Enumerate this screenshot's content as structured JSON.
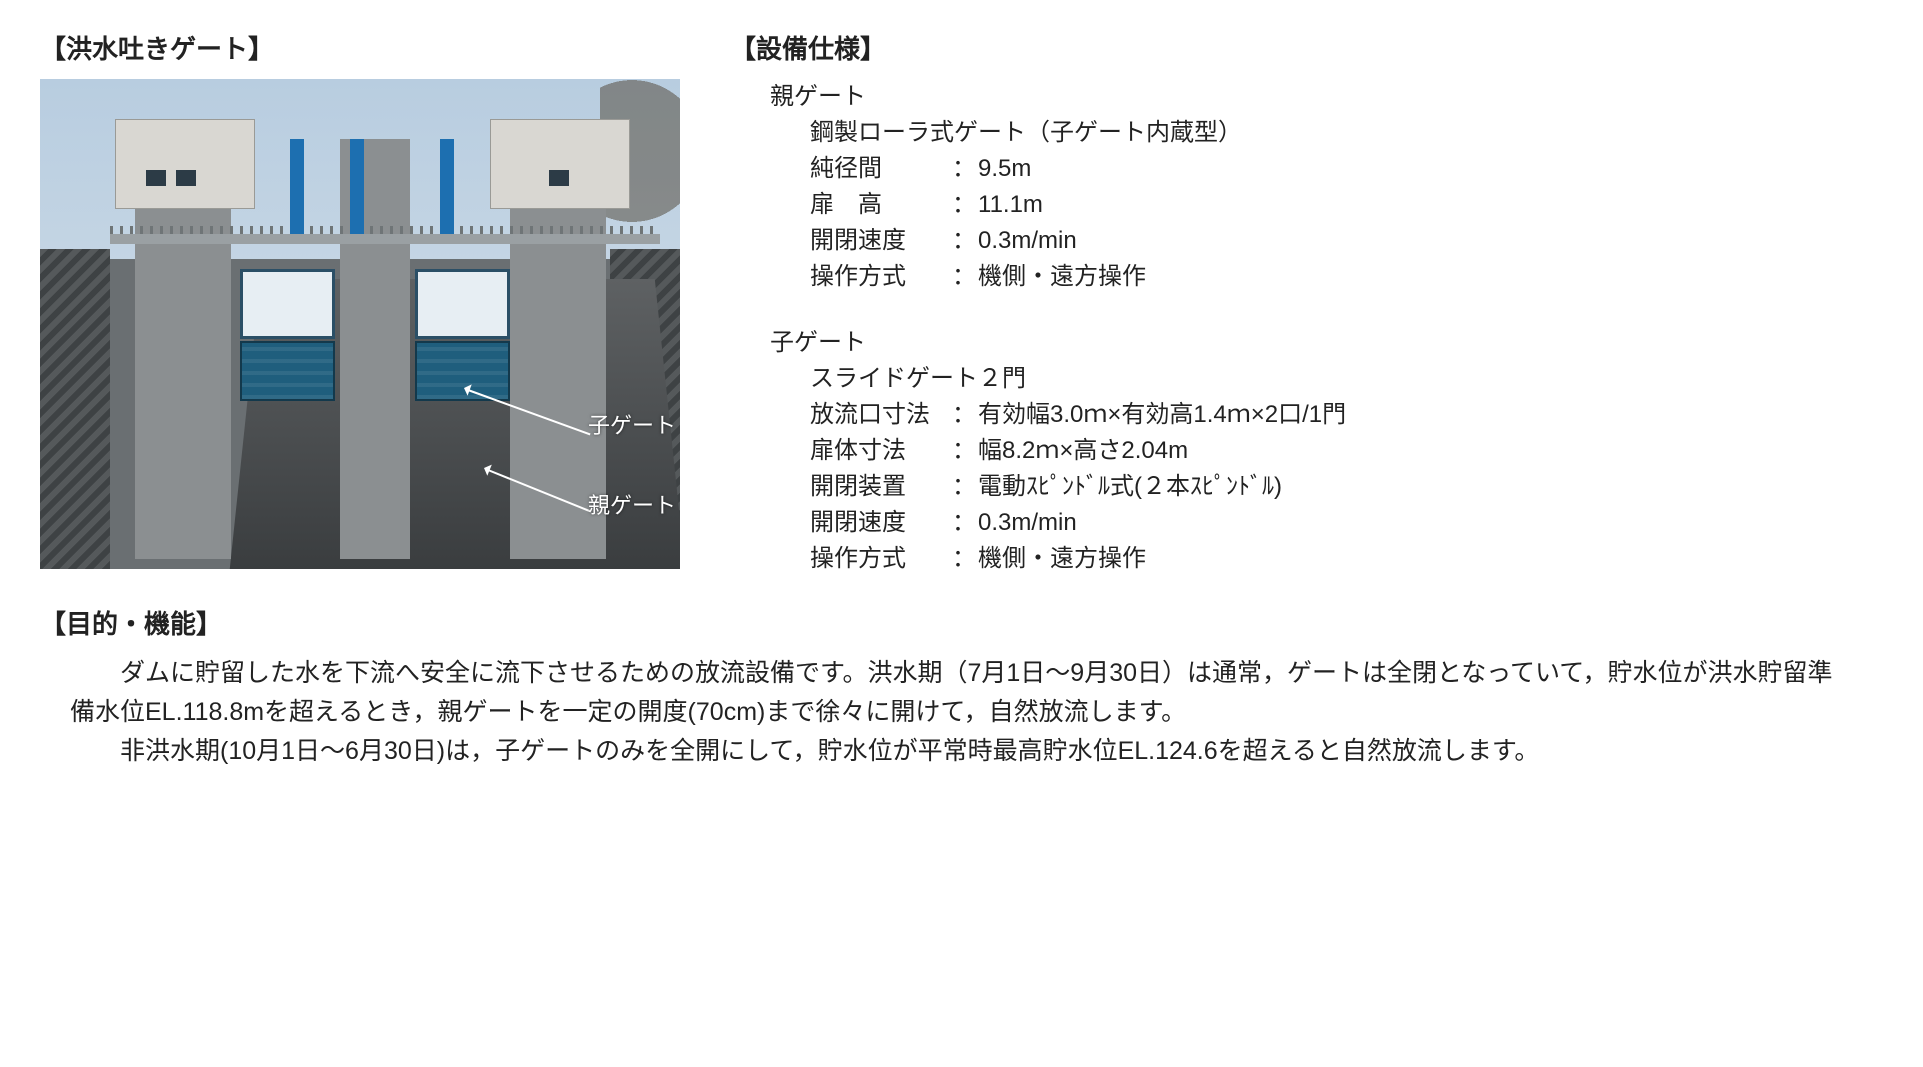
{
  "headings": {
    "gate_photo": "【洪水吐きゲート】",
    "spec": "【設備仕様】",
    "purpose": "【目的・機能】"
  },
  "photo": {
    "callout_child_gate": "子ゲート",
    "callout_parent_gate": "親ゲート"
  },
  "spec": {
    "parent": {
      "title": "親ゲート",
      "type": "鋼製ローラ式ゲート（子ゲート内蔵型）",
      "rows": {
        "span_label": "純径間",
        "span_value": "  9.5m",
        "height_label": "扉　高",
        "height_value": "11.1m",
        "speed_label": "開閉速度",
        "speed_value": " 0.3m/min",
        "op_label": "操作方式",
        "op_value": " 機側・遠方操作"
      }
    },
    "child": {
      "title": "子ゲート",
      "type": "スライドゲート２門",
      "rows": {
        "outlet_label": "放流口寸法",
        "outlet_value": " 有効幅3.0ｍ×有効高1.4ｍ×2口/1門",
        "body_label": "扉体寸法",
        "body_value": " 幅8.2ｍ×高さ2.04m",
        "device_label": "開閉装置",
        "device_value": " 電動ｽﾋﾟﾝﾄﾞﾙ式(２本ｽﾋﾟﾝﾄﾞﾙ)",
        "speed_label": "開閉速度",
        "speed_value": " 0.3m/min",
        "op_label": "操作方式",
        "op_value": " 機側・遠方操作"
      }
    }
  },
  "purpose": {
    "p1": "ダムに貯留した水を下流へ安全に流下させるための放流設備です。洪水期（7月1日～9月30日）は通常，ゲートは全閉となっていて，貯水位が洪水貯留準備水位EL.118.8mを超えるとき，親ゲートを一定の開度(70cm)まで徐々に開けて，自然放流します。",
    "p2": "非洪水期(10月1日～6月30日)は，子ゲートのみを全開にして，貯水位が平常時最高貯水位EL.124.6を超えると自然放流します。"
  }
}
